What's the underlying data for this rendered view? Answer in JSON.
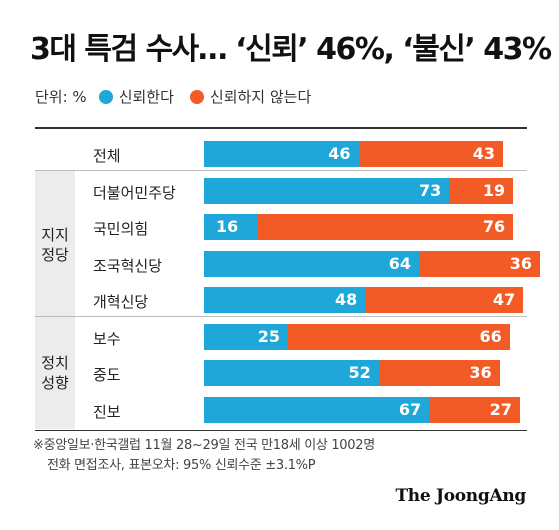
{
  "title": "3대 특검 수사… ‘신뢰’ 46%, ‘불신’ 43%",
  "legend": {
    "unit": "단위: %",
    "trust_label": "신뢰한다",
    "distrust_label": "신뢰하지 않는다"
  },
  "colors": {
    "trust": "#1ea7d8",
    "distrust": "#f25a26"
  },
  "groups": [
    {
      "label": "지지\n정당"
    },
    {
      "label": "정치\n성향"
    }
  ],
  "chart_data": {
    "type": "bar",
    "orientation": "horizontal",
    "stacked": true,
    "unit": "%",
    "categories": [
      "전체",
      "더불어민주당",
      "국민의힘",
      "조국혁신당",
      "개혁신당",
      "보수",
      "중도",
      "진보"
    ],
    "series": [
      {
        "name": "신뢰한다",
        "values": [
          46,
          73,
          16,
          64,
          48,
          25,
          52,
          67
        ]
      },
      {
        "name": "신뢰하지 않는다",
        "values": [
          43,
          19,
          76,
          36,
          47,
          66,
          36,
          27
        ]
      }
    ],
    "xlim": [
      0,
      100
    ],
    "legend_position": "top-left",
    "grid": false
  },
  "footnote": {
    "line1": "※중앙일보·한국갤럽 11월 28~29일 전국 만18세 이상 1002명",
    "line2": "전화 면접조사, 표본오차: 95% 신뢰수준 ±3.1%P"
  },
  "brand": "The JoongAng"
}
